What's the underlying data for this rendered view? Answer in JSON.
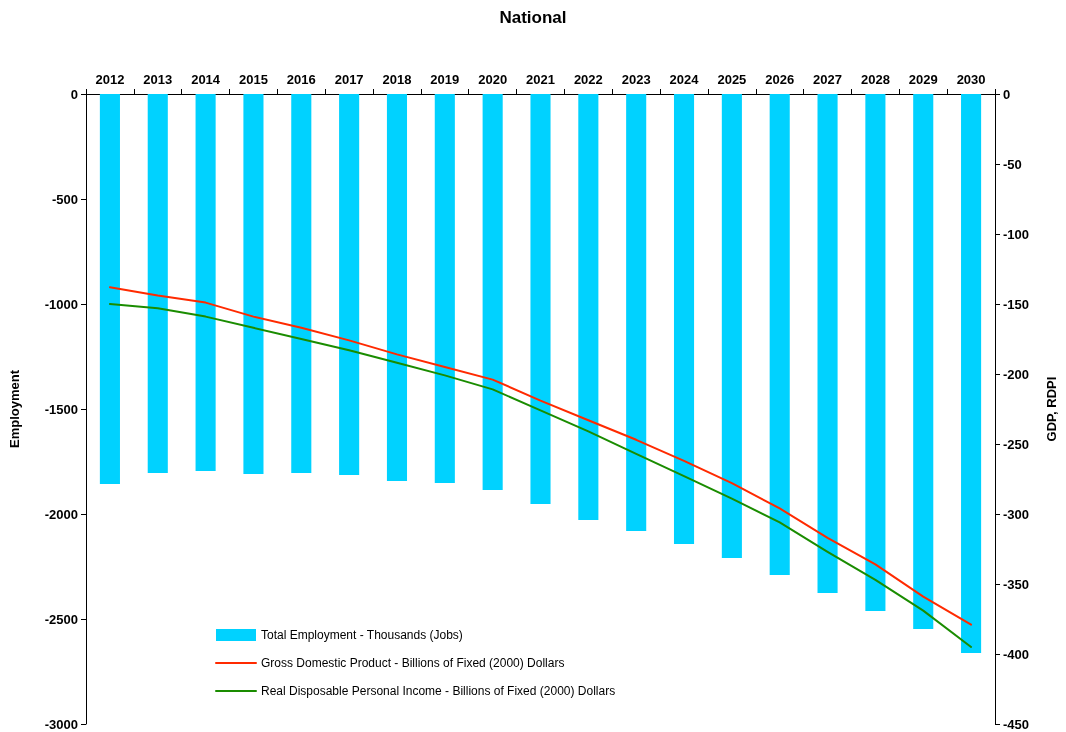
{
  "chart_data": {
    "type": "bar",
    "title": "National",
    "ylabel": "Employment",
    "y2label": "GDP, RDPI",
    "categories": [
      "2012",
      "2013",
      "2014",
      "2015",
      "2016",
      "2017",
      "2018",
      "2019",
      "2020",
      "2021",
      "2022",
      "2023",
      "2024",
      "2025",
      "2026",
      "2027",
      "2028",
      "2029",
      "2030"
    ],
    "series": [
      {
        "name": "Total Employment - Thousands (Jobs)",
        "color": "#00d2ff",
        "values": [
          -1857,
          -1805,
          -1795,
          -1810,
          -1805,
          -1814,
          -1843,
          -1852,
          -1886,
          -1952,
          -2029,
          -2081,
          -2143,
          -2210,
          -2290,
          -2376,
          -2462,
          -2548,
          -2662
        ]
      },
      {
        "name": "Gross Domestic Product - Billions of Fixed (2000) Dollars",
        "type": "line",
        "axis": "y2",
        "color": "#ff2a00",
        "values": [
          -138,
          -144,
          -149,
          -159,
          -167,
          -176,
          -186,
          -195,
          -204,
          -219,
          -233,
          -247,
          -262,
          -278,
          -296,
          -317,
          -336,
          -359,
          -379
        ]
      },
      {
        "name": "Real Disposable Personal Income - Billions of Fixed (2000) Dollars",
        "type": "line",
        "axis": "y2",
        "color": "#1a8c00",
        "values": [
          -150,
          -153,
          -159,
          -167,
          -175,
          -183,
          -192,
          -201,
          -211,
          -226,
          -241,
          -257,
          -273,
          -289,
          -306,
          -327,
          -347,
          -369,
          -395
        ]
      }
    ],
    "ylim": [
      -3000,
      0
    ],
    "yticks": [
      -3000,
      -2500,
      -2000,
      -1500,
      -1000,
      -500,
      0
    ],
    "y2lim": [
      -450,
      0
    ],
    "y2ticks": [
      -450,
      -400,
      -350,
      -300,
      -250,
      -200,
      -150,
      -100,
      -50,
      0
    ],
    "grid": false,
    "legend": "bottom left",
    "marker": "none",
    "line_style": "solid"
  }
}
